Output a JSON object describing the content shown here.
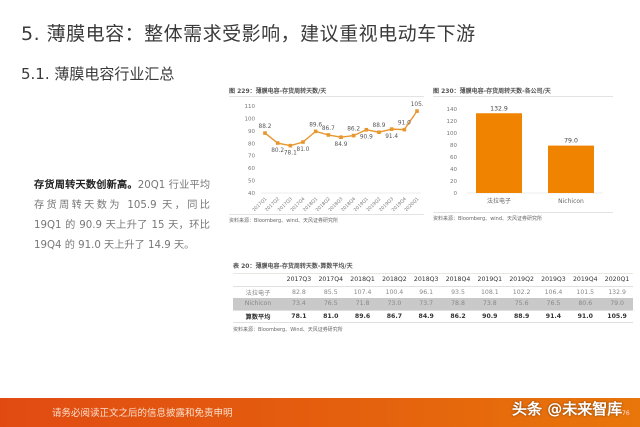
{
  "heading": {
    "section": "5. 薄膜电容：整体需求受影响，建议重视电动车下游",
    "subsection": "5.1. 薄膜电容行业汇总"
  },
  "paragraph": {
    "bold": "存货周转天数创新高。",
    "text": "20Q1 行业平均存货周转天数为 105.9 天，同比 19Q1 的 90.9 天上升了 15 天，环比 19Q4 的 91.0 天上升了 14.9 天。"
  },
  "figure229": {
    "title": "图 229：薄膜电容-存货周转天数/天",
    "source": "资料来源：Bloomberg、wind、天风证券研究所"
  },
  "figure230": {
    "title": "图 230：薄膜电容-存货周转天数-各公司/天",
    "source": "资料来源：Bloomberg、wind、天风证券研究所"
  },
  "table20": {
    "title": "表 20：薄膜电容-存货周转天数-算数平均/天",
    "source": "资料来源：Bloomberg、Wind、天风证券研究所",
    "columns": [
      "",
      "2017Q3",
      "2017Q4",
      "2018Q1",
      "2018Q2",
      "2018Q3",
      "2018Q4",
      "2019Q1",
      "2019Q2",
      "2019Q3",
      "2019Q4",
      "2020Q1"
    ],
    "rows": [
      {
        "label": "法拉电子",
        "values": [
          "82.8",
          "85.5",
          "107.4",
          "100.4",
          "96.1",
          "93.5",
          "108.1",
          "102.2",
          "106.4",
          "101.5",
          "132.9"
        ]
      },
      {
        "label": "Nichicon",
        "values": [
          "73.4",
          "76.5",
          "71.8",
          "73.0",
          "73.7",
          "78.8",
          "73.8",
          "75.6",
          "76.5",
          "80.6",
          "79.0"
        ]
      },
      {
        "label": "算数平均",
        "values": [
          "78.1",
          "81.0",
          "89.6",
          "86.7",
          "84.9",
          "86.2",
          "90.9",
          "88.9",
          "91.4",
          "91.0",
          "105.9"
        ]
      }
    ]
  },
  "footer": {
    "disclaimer": "请务必阅读正文之后的信息披露和免责申明",
    "watermark": "头条 @未来智库",
    "page_number": "76"
  },
  "colors": {
    "accent_orange": "#E8962E",
    "bar_orange": "#F08300",
    "footer_start": "#E14B12",
    "footer_end": "#E8760A"
  },
  "chart_data": [
    {
      "type": "line",
      "title": "图 229：薄膜电容-存货周转天数/天",
      "xlabel": "",
      "ylabel": "",
      "x": [
        "2017Q1",
        "2017Q2",
        "2017Q3",
        "2017Q4",
        "2018Q1",
        "2018Q2",
        "2018Q3",
        "2018Q4",
        "2019Q1",
        "2019Q2",
        "2019Q3",
        "2019Q4",
        "2020Q1"
      ],
      "series": [
        {
          "name": "存货周转天数",
          "values": [
            88.2,
            80.2,
            78.1,
            81.0,
            89.6,
            86.7,
            84.9,
            86.2,
            90.9,
            88.9,
            91.4,
            91.0,
            105.9
          ]
        }
      ],
      "ylim": [
        40,
        110
      ],
      "yticks": [
        40,
        50,
        60,
        70,
        80,
        90,
        100,
        110
      ],
      "grid": false,
      "legend": "none",
      "source": "资料来源：Bloomberg、wind、天风证券研究所"
    },
    {
      "type": "bar",
      "title": "图 230：薄膜电容-存货周转天数-各公司/天",
      "categories": [
        "法拉电子",
        "Nichicon"
      ],
      "values": [
        132.9,
        79.0
      ],
      "ylim": [
        0,
        140
      ],
      "yticks": [
        0,
        20,
        40,
        60,
        80,
        100,
        120,
        140
      ],
      "xlabel": "",
      "ylabel": "",
      "source": "资料来源：Bloomberg、wind、天风证券研究所"
    }
  ]
}
